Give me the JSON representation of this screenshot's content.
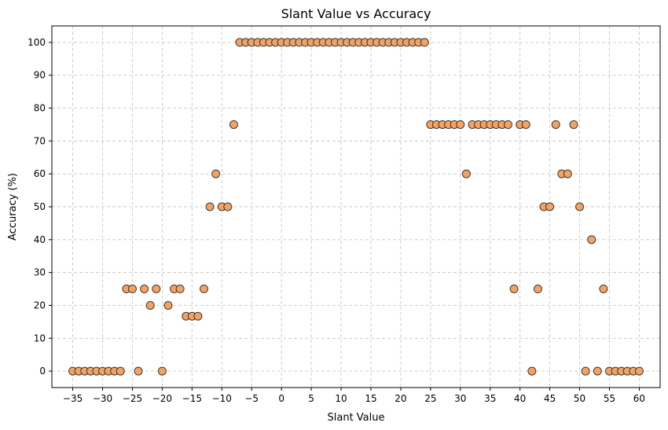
{
  "chart_data": {
    "type": "scatter",
    "title": "Slant Value vs Accuracy",
    "xlabel": "Slant Value",
    "ylabel": "Accuracy (%)",
    "xlim": [
      -38.5,
      63.5
    ],
    "ylim": [
      -5,
      105
    ],
    "xticks": [
      -35,
      -30,
      -25,
      -20,
      -15,
      -10,
      -5,
      0,
      5,
      10,
      15,
      20,
      25,
      30,
      35,
      40,
      45,
      50,
      55,
      60
    ],
    "xtick_labels": [
      "−35",
      "−30",
      "−25",
      "−20",
      "−15",
      "−10",
      "−5",
      "0",
      "5",
      "10",
      "15",
      "20",
      "25",
      "30",
      "35",
      "40",
      "45",
      "50",
      "55",
      "60"
    ],
    "yticks": [
      0,
      10,
      20,
      30,
      40,
      50,
      60,
      70,
      80,
      90,
      100
    ],
    "ytick_labels": [
      "0",
      "10",
      "20",
      "30",
      "40",
      "50",
      "60",
      "70",
      "80",
      "90",
      "100"
    ],
    "grid": true,
    "marker_color": "#f4a261",
    "marker_edge_color": "#3a3a3a",
    "x": [
      -35,
      -34,
      -33,
      -32,
      -31,
      -30,
      -29,
      -28,
      -27,
      -26,
      -25,
      -24,
      -23,
      -22,
      -21,
      -20,
      -19,
      -18,
      -17,
      -16,
      -15,
      -14,
      -13,
      -12,
      -11,
      -10,
      -9,
      -8,
      -7,
      -6,
      -5,
      -4,
      -3,
      -2,
      -1,
      0,
      1,
      2,
      3,
      4,
      5,
      6,
      7,
      8,
      9,
      10,
      11,
      12,
      13,
      14,
      15,
      16,
      17,
      18,
      19,
      20,
      21,
      22,
      23,
      24,
      25,
      26,
      27,
      28,
      29,
      30,
      31,
      32,
      33,
      34,
      35,
      36,
      37,
      38,
      39,
      40,
      41,
      42,
      43,
      44,
      45,
      46,
      47,
      48,
      49,
      50,
      51,
      52,
      53,
      54,
      55,
      56,
      57,
      58,
      59,
      60
    ],
    "y": [
      0,
      0,
      0,
      0,
      0,
      0,
      0,
      0,
      0,
      25,
      25,
      0,
      25,
      20,
      25,
      0,
      20,
      25,
      25,
      16.7,
      16.7,
      16.7,
      25,
      50,
      60,
      50,
      50,
      75,
      100,
      100,
      100,
      100,
      100,
      100,
      100,
      100,
      100,
      100,
      100,
      100,
      100,
      100,
      100,
      100,
      100,
      100,
      100,
      100,
      100,
      100,
      100,
      100,
      100,
      100,
      100,
      100,
      100,
      100,
      100,
      100,
      75,
      75,
      75,
      75,
      75,
      75,
      60,
      75,
      75,
      75,
      75,
      75,
      75,
      75,
      25,
      75,
      75,
      0,
      25,
      50,
      50,
      75,
      60,
      60,
      75,
      50,
      0,
      40,
      0,
      25,
      0,
      0,
      0,
      0,
      0,
      0
    ]
  }
}
